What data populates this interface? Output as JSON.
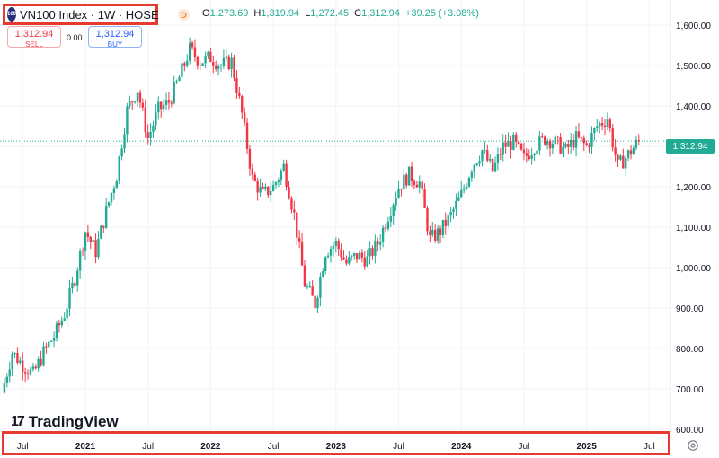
{
  "header": {
    "symbol_badge": "100",
    "symbol_title": "VN100 Index · 1W · HOSE",
    "delay_badge": "D",
    "ohlc": {
      "o_label": "O",
      "o": "1,273.69",
      "h_label": "H",
      "h": "1,319.94",
      "l_label": "L",
      "l": "1,272.45",
      "c_label": "C",
      "c": "1,312.94",
      "change": "+39.25 (+3.08%)"
    }
  },
  "trade": {
    "sell_price": "1,312.94",
    "sell_label": "SELL",
    "spread": "0.00",
    "buy_price": "1,312.94",
    "buy_label": "BUY"
  },
  "last_price_tag": "1,312.94",
  "brand": {
    "logo_mark": "17",
    "name": "TradingView"
  },
  "colors": {
    "up": "#22ab94",
    "down": "#f23645",
    "highlight": "#e53a2d"
  },
  "chart_data": {
    "type": "candlestick",
    "title": "VN100 Index · 1W · HOSE",
    "ylim": [
      600,
      1630
    ],
    "yticks": [
      600,
      700,
      800,
      900,
      1000,
      1100,
      1200,
      1300,
      1400,
      1500,
      1600
    ],
    "ytick_labels": [
      "600.00",
      "700.00",
      "800.00",
      "900.00",
      "1,000.00",
      "1,100.00",
      "1,200.00",
      "1,300.00",
      "1,400.00",
      "1,500.00",
      "1,600.00"
    ],
    "xticks": [
      "Jul",
      "2021",
      "Jul",
      "2022",
      "Jul",
      "2023",
      "Jul",
      "2024",
      "Jul",
      "2025",
      "Jul"
    ],
    "x_range": [
      "2020-05",
      "2025-08"
    ],
    "last_value": 1312.94,
    "series": [
      {
        "values": [
          [
            "2020-05",
            690
          ],
          [
            "2020-06",
            790
          ],
          [
            "2020-07",
            760
          ],
          [
            "2020-08",
            735
          ],
          [
            "2020-09",
            790
          ],
          [
            "2020-10",
            830
          ],
          [
            "2020-11",
            885
          ],
          [
            "2020-12",
            975
          ],
          [
            "2021-01",
            1090
          ],
          [
            "2021-02",
            1040
          ],
          [
            "2021-03",
            1140
          ],
          [
            "2021-04",
            1230
          ],
          [
            "2021-05",
            1390
          ],
          [
            "2021-06",
            1440
          ],
          [
            "2021-07",
            1320
          ],
          [
            "2021-08",
            1390
          ],
          [
            "2021-09",
            1410
          ],
          [
            "2021-10",
            1470
          ],
          [
            "2021-11",
            1540
          ],
          [
            "2021-12",
            1510
          ],
          [
            "2022-01",
            1520
          ],
          [
            "2022-02",
            1500
          ],
          [
            "2022-03",
            1510
          ],
          [
            "2022-04",
            1380
          ],
          [
            "2022-05",
            1220
          ],
          [
            "2022-06",
            1180
          ],
          [
            "2022-07",
            1200
          ],
          [
            "2022-08",
            1250
          ],
          [
            "2022-09",
            1130
          ],
          [
            "2022-10",
            960
          ],
          [
            "2022-11",
            910
          ],
          [
            "2022-12",
            1040
          ],
          [
            "2023-01",
            1060
          ],
          [
            "2023-02",
            1010
          ],
          [
            "2023-03",
            1030
          ],
          [
            "2023-04",
            1020
          ],
          [
            "2023-05",
            1060
          ],
          [
            "2023-06",
            1130
          ],
          [
            "2023-07",
            1200
          ],
          [
            "2023-08",
            1230
          ],
          [
            "2023-09",
            1210
          ],
          [
            "2023-10",
            1070
          ],
          [
            "2023-11",
            1090
          ],
          [
            "2023-12",
            1130
          ],
          [
            "2024-01",
            1180
          ],
          [
            "2024-02",
            1250
          ],
          [
            "2024-03",
            1290
          ],
          [
            "2024-04",
            1240
          ],
          [
            "2024-05",
            1300
          ],
          [
            "2024-06",
            1310
          ],
          [
            "2024-07",
            1270
          ],
          [
            "2024-08",
            1300
          ],
          [
            "2024-09",
            1320
          ],
          [
            "2024-10",
            1310
          ],
          [
            "2024-11",
            1290
          ],
          [
            "2024-12",
            1320
          ],
          [
            "2025-01",
            1300
          ],
          [
            "2025-02",
            1350
          ],
          [
            "2025-03",
            1370
          ],
          [
            "2025-04",
            1250
          ],
          [
            "2025-05",
            1280
          ],
          [
            "2025-06",
            1313
          ]
        ]
      }
    ]
  }
}
